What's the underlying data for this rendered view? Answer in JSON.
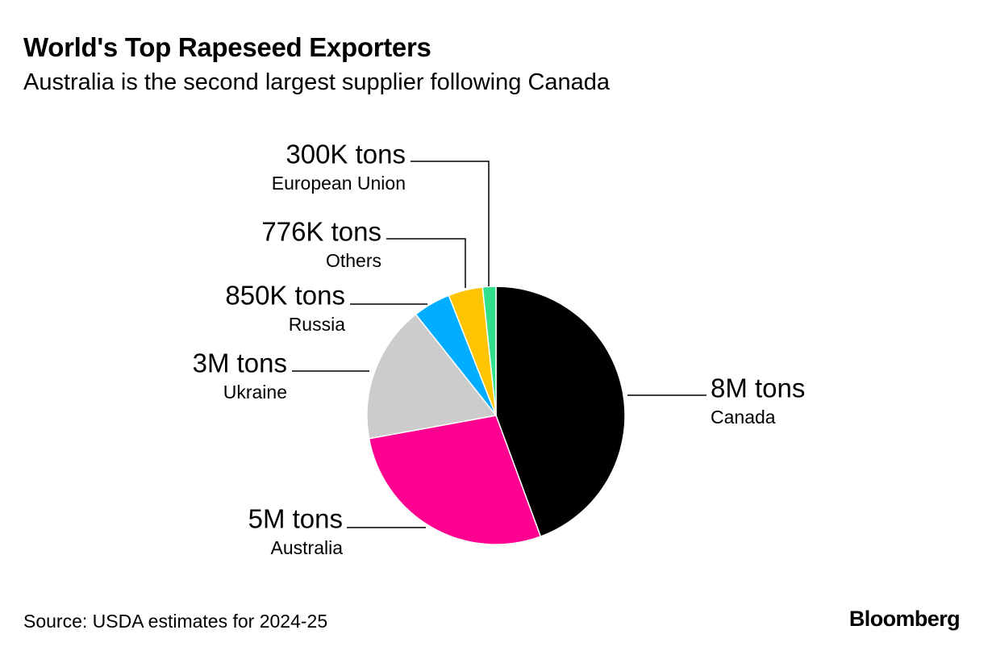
{
  "header": {
    "title": "World's Top Rapeseed Exporters",
    "subtitle": "Australia is the second largest supplier following Canada"
  },
  "chart_data": {
    "type": "pie",
    "slices": [
      {
        "name": "Canada",
        "label": "8M tons",
        "value": 8000,
        "color": "#000000"
      },
      {
        "name": "Australia",
        "label": "5M tons",
        "value": 5000,
        "color": "#ff0090"
      },
      {
        "name": "Ukraine",
        "label": "3M tons",
        "value": 3100,
        "color": "#cccccc"
      },
      {
        "name": "Russia",
        "label": "850K tons",
        "value": 850,
        "color": "#00adff"
      },
      {
        "name": "Others",
        "label": "776K tons",
        "value": 776,
        "color": "#ffc400"
      },
      {
        "name": "European Union",
        "label": "300K tons",
        "value": 300,
        "color": "#30e08a"
      }
    ],
    "units": "thousand tons"
  },
  "footer": {
    "source": "Source: USDA estimates for 2024-25",
    "logo": "Bloomberg"
  }
}
